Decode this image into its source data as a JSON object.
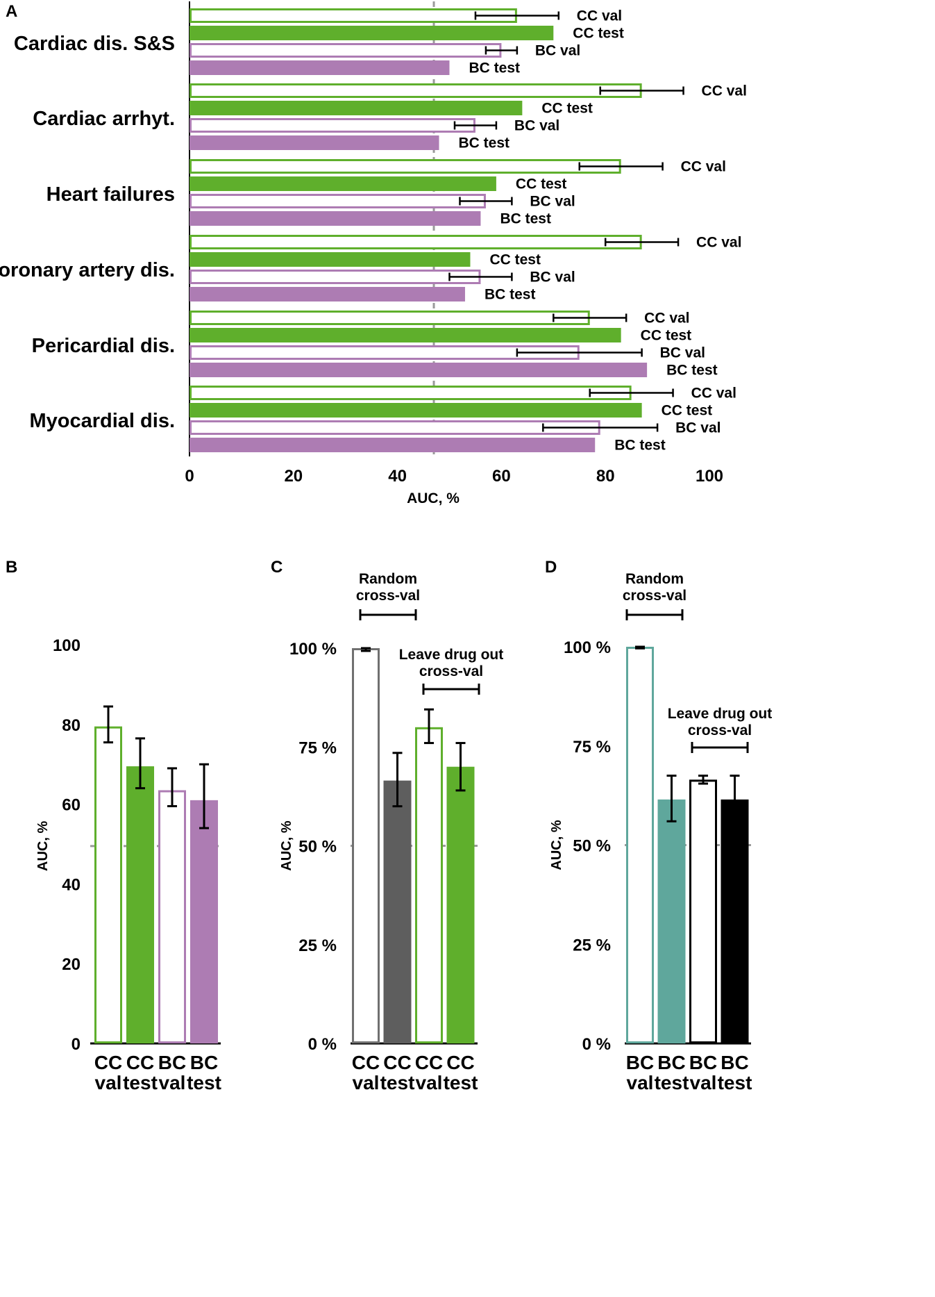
{
  "colors": {
    "green": "#5FAF2C",
    "purple": "#AD7CB3",
    "dark_gray": "#5E5E5E",
    "gray": "#707070",
    "teal": "#5FA79C",
    "black": "#000000",
    "ref_line": "#9A9A9A"
  },
  "chart_data": [
    {
      "panel": "A",
      "type": "bar",
      "orientation": "horizontal",
      "xlabel": "AUC, %",
      "xlim": [
        0,
        100
      ],
      "xticks": [
        "0",
        "20",
        "40",
        "60",
        "80",
        "100"
      ],
      "reference_line": 47,
      "categories": [
        {
          "label": "Cardiac dis. S&S",
          "bars": [
            {
              "name": "CC val",
              "value": 63,
              "err": [
                55,
                71
              ],
              "style": "green-outline"
            },
            {
              "name": "CC test",
              "value": 70,
              "style": "green-fill"
            },
            {
              "name": "BC val",
              "value": 60,
              "err": [
                57,
                63
              ],
              "style": "purple-outline"
            },
            {
              "name": "BC test",
              "value": 50,
              "style": "purple-fill"
            }
          ]
        },
        {
          "label": "Cardiac arrhyt.",
          "bars": [
            {
              "name": "CC val",
              "value": 87,
              "err": [
                79,
                95
              ],
              "style": "green-outline"
            },
            {
              "name": "CC test",
              "value": 64,
              "style": "green-fill"
            },
            {
              "name": "BC val",
              "value": 55,
              "err": [
                51,
                59
              ],
              "style": "purple-outline"
            },
            {
              "name": "BC test",
              "value": 48,
              "style": "purple-fill"
            }
          ]
        },
        {
          "label": "Heart failures",
          "bars": [
            {
              "name": "CC val",
              "value": 83,
              "err": [
                75,
                91
              ],
              "style": "green-outline"
            },
            {
              "name": "CC test",
              "value": 59,
              "style": "green-fill"
            },
            {
              "name": "BC val",
              "value": 57,
              "err": [
                52,
                62
              ],
              "style": "purple-outline"
            },
            {
              "name": "BC test",
              "value": 56,
              "style": "purple-fill"
            }
          ]
        },
        {
          "label": "Coronary artery dis.",
          "bars": [
            {
              "name": "CC val",
              "value": 87,
              "err": [
                80,
                94
              ],
              "style": "green-outline"
            },
            {
              "name": "CC test",
              "value": 54,
              "style": "green-fill"
            },
            {
              "name": "BC val",
              "value": 56,
              "err": [
                50,
                62
              ],
              "style": "purple-outline"
            },
            {
              "name": "BC test",
              "value": 53,
              "style": "purple-fill"
            }
          ]
        },
        {
          "label": "Pericardial dis.",
          "bars": [
            {
              "name": "CC val",
              "value": 77,
              "err": [
                70,
                84
              ],
              "style": "green-outline"
            },
            {
              "name": "CC test",
              "value": 83,
              "style": "green-fill"
            },
            {
              "name": "BC val",
              "value": 75,
              "err": [
                63,
                87
              ],
              "style": "purple-outline"
            },
            {
              "name": "BC test",
              "value": 88,
              "style": "purple-fill"
            }
          ]
        },
        {
          "label": "Myocardial dis.",
          "bars": [
            {
              "name": "CC val",
              "value": 85,
              "err": [
                77,
                93
              ],
              "style": "green-outline"
            },
            {
              "name": "CC test",
              "value": 87,
              "style": "green-fill"
            },
            {
              "name": "BC val",
              "value": 79,
              "err": [
                68,
                90
              ],
              "style": "purple-outline"
            },
            {
              "name": "BC test",
              "value": 78,
              "style": "purple-fill"
            }
          ]
        }
      ]
    },
    {
      "panel": "B",
      "type": "bar",
      "ylabel": "AUC, %",
      "ylim": [
        0,
        100
      ],
      "yticks": [
        "0",
        "20",
        "40",
        "60",
        "80",
        "100"
      ],
      "reference_line": 49.5,
      "bars": [
        {
          "line1": "CC",
          "line2": "val",
          "value": 79.5,
          "err": [
            75.5,
            84.5
          ],
          "style": "green-outline"
        },
        {
          "line1": "CC",
          "line2": "test",
          "value": 69.5,
          "err": [
            64,
            76.5
          ],
          "style": "green-fill"
        },
        {
          "line1": "BC",
          "line2": "val",
          "value": 63.5,
          "err": [
            59.5,
            69
          ],
          "style": "purple-outline"
        },
        {
          "line1": "BC",
          "line2": "test",
          "value": 61,
          "err": [
            54,
            70
          ],
          "style": "purple-fill"
        }
      ]
    },
    {
      "panel": "C",
      "type": "bar",
      "ylabel": "AUC, %",
      "ylim": [
        0,
        100
      ],
      "yticks": [
        "0 %",
        "25 %",
        "50 %",
        "75 %",
        "100 %"
      ],
      "reference_line": 50,
      "annotations": [
        {
          "line1": "Random",
          "line2": "cross-val"
        },
        {
          "line1": "Leave drug out",
          "line2": "cross-val"
        }
      ],
      "bars": [
        {
          "line1": "CC",
          "line2": "val",
          "value": 100,
          "err": [
            99.3,
            100
          ],
          "style": "gray-outline"
        },
        {
          "line1": "CC",
          "line2": "test",
          "value": 66.5,
          "err": [
            60,
            73.5
          ],
          "style": "darkgray-fill"
        },
        {
          "line1": "CC",
          "line2": "val",
          "value": 80,
          "err": [
            76,
            84.5
          ],
          "style": "green-outline"
        },
        {
          "line1": "CC",
          "line2": "test",
          "value": 70,
          "err": [
            64,
            76
          ],
          "style": "green-fill"
        }
      ]
    },
    {
      "panel": "D",
      "type": "bar",
      "ylabel": "AUC, %",
      "ylim": [
        0,
        100
      ],
      "yticks": [
        "0 %",
        "25 %",
        "50 %",
        "75 %",
        "100 %"
      ],
      "reference_line": 50,
      "annotations": [
        {
          "line1": "Random",
          "line2": "cross-val"
        },
        {
          "line1": "Leave drug out",
          "line2": "cross-val"
        }
      ],
      "bars": [
        {
          "line1": "BC",
          "line2": "val",
          "value": 100,
          "err": [
            99.6,
            100
          ],
          "style": "teal-outline"
        },
        {
          "line1": "BC",
          "line2": "test",
          "value": 61.5,
          "err": [
            56,
            67.5
          ],
          "style": "teal-fill"
        },
        {
          "line1": "BC",
          "line2": "val",
          "value": 66.5,
          "err": [
            65.5,
            67.5
          ],
          "style": "black-outline"
        },
        {
          "line1": "BC",
          "line2": "test",
          "value": 61.5,
          "err": [
            55.5,
            67.5
          ],
          "style": "black-fill"
        }
      ]
    }
  ]
}
